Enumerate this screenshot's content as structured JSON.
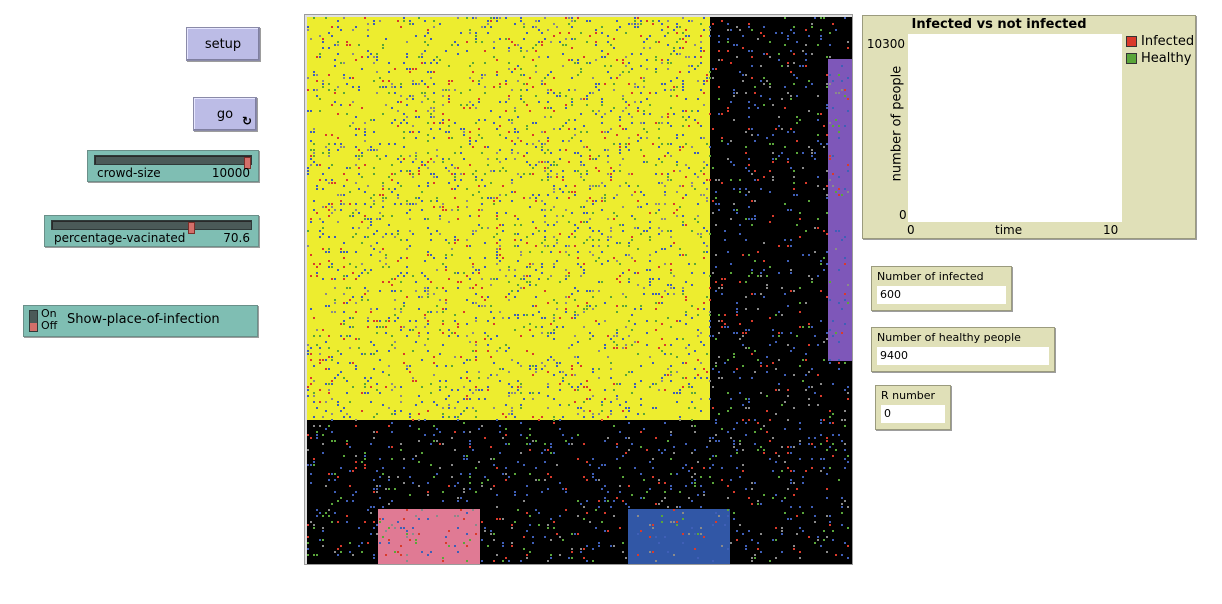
{
  "buttons": {
    "setup": "setup",
    "go": "go",
    "go_forever_icon": "↻"
  },
  "sliders": [
    {
      "name": "crowd-size",
      "value": "10000",
      "fraction": 1.0
    },
    {
      "name": "percentage-vacinated",
      "value": "70.6",
      "fraction": 0.706
    }
  ],
  "switch": {
    "on_label": "On",
    "off_label": "Off",
    "name": "Show-place-of-infection",
    "state": "off"
  },
  "plot": {
    "title": "Infected vs not infected",
    "ylabel": "number of people",
    "xlabel": "time",
    "ymax": "10300",
    "ymin": "0",
    "xmin": "0",
    "xmax": "10",
    "legend": [
      {
        "name": "Infected",
        "color": "#d93a2b"
      },
      {
        "name": "Healthy",
        "color": "#5aa63a"
      }
    ]
  },
  "monitors": {
    "infected": {
      "label": "Number of infected",
      "value": "600"
    },
    "healthy": {
      "label": "Number of healthy people",
      "value": "9400"
    },
    "r_number": {
      "label": "R number",
      "value": "0"
    }
  },
  "world_colors": {
    "background": "#000000",
    "yellow_zone": "#eded2f",
    "purple_zone": "#7e57b9",
    "pink_zone": "#e07a94",
    "blue_zone": "#3157a6",
    "agent_blue": "#3f5fb7",
    "agent_green": "#5aa63a",
    "agent_red": "#d93a2b",
    "agent_grey": "#8a8a8a"
  }
}
